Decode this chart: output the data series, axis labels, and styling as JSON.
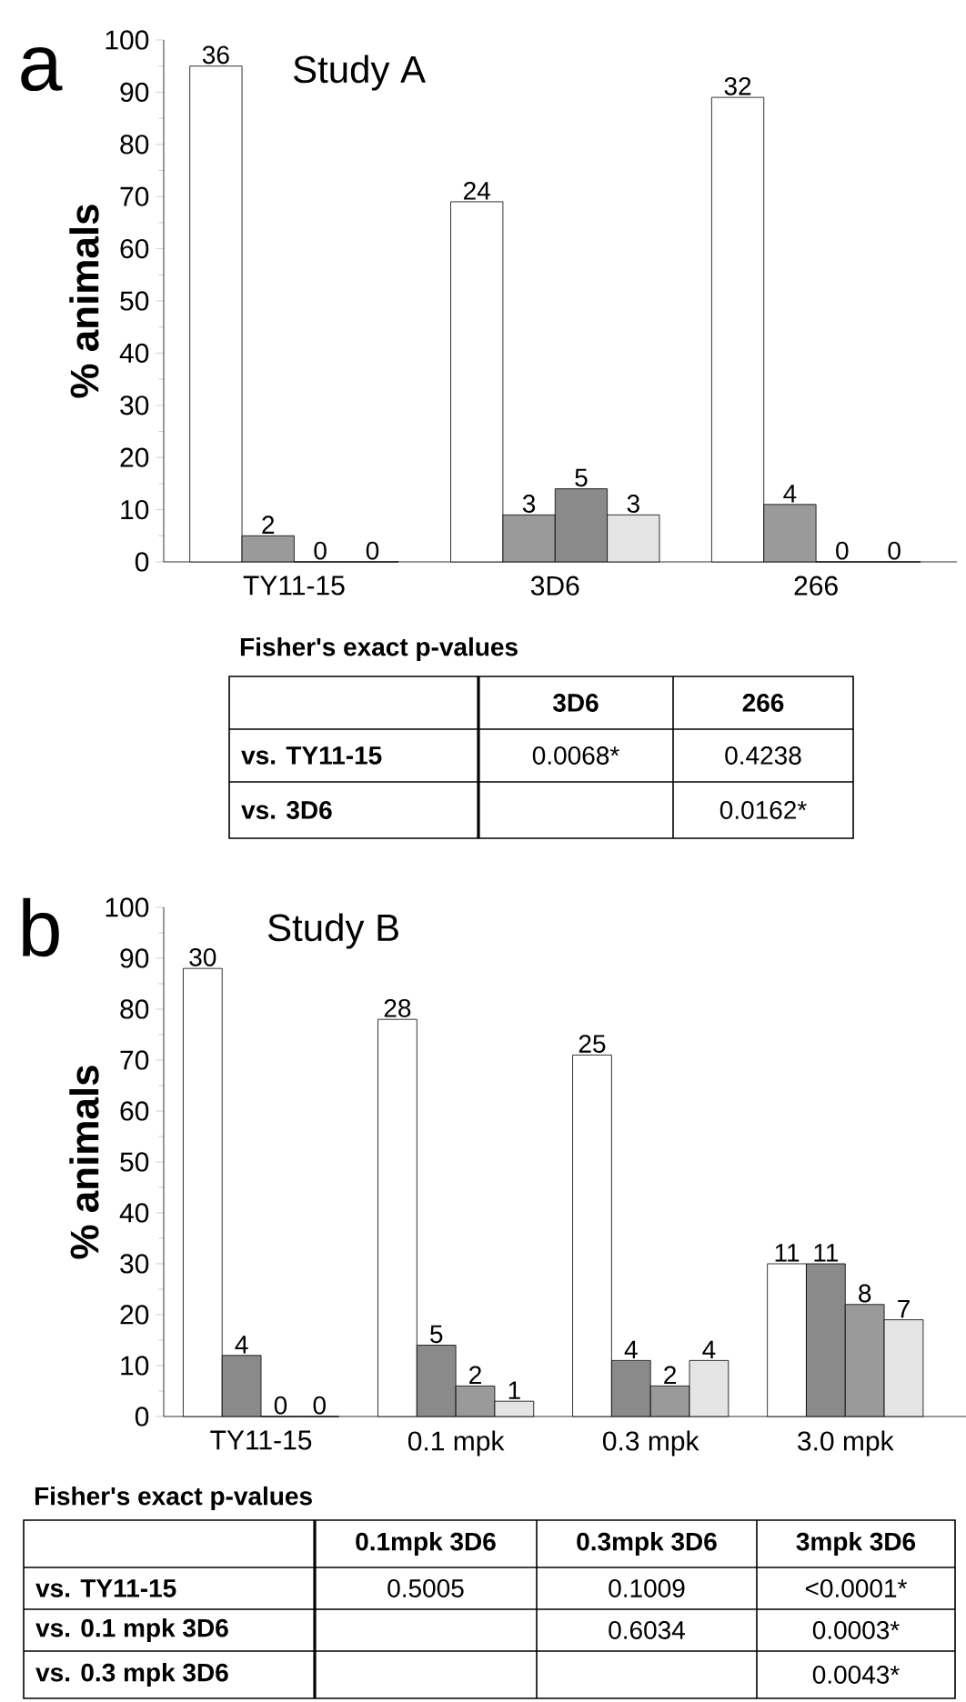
{
  "chart_data": [
    {
      "type": "bar",
      "title": "Study A",
      "ylabel": "% animals",
      "categories": [
        "TY11-15",
        "3D6",
        "266"
      ],
      "ylim": [
        0,
        100
      ],
      "yticks": [
        0,
        10,
        20,
        30,
        40,
        50,
        60,
        70,
        80,
        90,
        100
      ],
      "series": [
        {
          "color": "#ffffff",
          "values": [
            95,
            69,
            89
          ]
        },
        {
          "color": "#9a9a9a",
          "values": [
            5,
            9,
            11
          ]
        },
        {
          "color": "#8a8a8a",
          "values": [
            0,
            14,
            0
          ]
        },
        {
          "color": "#e4e4e4",
          "values": [
            0,
            9,
            0
          ]
        }
      ],
      "annotations": [
        "a",
        "Fisher's exact p-values",
        null,
        "3D6",
        "266",
        "vs. TY11-15",
        "0.0068*",
        "0.4238",
        "vs. 3D6",
        null,
        "0.0162*",
        {
          "text": "36",
          "y": 95
        },
        {
          "text": "2",
          "x": "TY11-15",
          "y": 5
        },
        {
          "text": "0",
          "x": "TY11-15",
          "y": 0
        },
        {
          "text": "0",
          "x": "TY11-15",
          "y": 0
        },
        {
          "text": "24",
          "y": 69
        },
        {
          "text": "3",
          "x": "3D6",
          "y": 9
        },
        {
          "text": "5",
          "x": "3D6",
          "y": 14
        },
        {
          "text": "3",
          "x": "3D6",
          "y": 9
        },
        {
          "text": "32",
          "y": 89
        },
        {
          "text": "4",
          "x": "266",
          "y": 11
        },
        {
          "text": "0",
          "x": "266",
          "y": 0
        },
        {
          "text": "0",
          "x": "266",
          "y": 0
        }
      ]
    },
    {
      "type": "bar",
      "title": "Study B",
      "ylabel": "% animals",
      "categories": [
        "TY11-15",
        "0.1 mpk",
        "0.3 mpk",
        "3.0 mpk"
      ],
      "ylim": [
        0,
        100
      ],
      "yticks": [
        0,
        10,
        20,
        30,
        40,
        50,
        60,
        70,
        80,
        90,
        100
      ],
      "series": [
        {
          "color": "#ffffff",
          "values": [
            88,
            78,
            71,
            30
          ]
        },
        {
          "color": "#8a8a8a",
          "values": [
            12,
            14,
            11,
            30
          ]
        },
        {
          "color": "#9a9a9a",
          "values": [
            0,
            6,
            6,
            22
          ]
        },
        {
          "color": "#e4e4e4",
          "values": [
            0,
            3,
            11,
            19
          ]
        }
      ],
      "annotations": [
        "b",
        "Fisher's exact p-values",
        null,
        "0.1mpk 3D6",
        "0.3mpk 3D6",
        "3mpk 3D6",
        "vs. TY11-15",
        "0.5005",
        "0.1009",
        "<0.0001*",
        "vs. 0.1 mpk 3D6",
        null,
        "0.6034",
        "0.0003*",
        "vs. 0.3 mpk 3D6",
        null,
        null,
        "0.0043*",
        {
          "text": "30",
          "y": 88
        },
        {
          "text": "4",
          "x": "TY11-15",
          "y": 12
        },
        {
          "text": "0",
          "x": "TY11-15",
          "y": 0
        },
        {
          "text": "0",
          "x": "TY11-15",
          "y": 0
        },
        {
          "text": "28",
          "y": 78
        },
        {
          "text": "5",
          "x": "0.1 mpk",
          "y": 14
        },
        {
          "text": "2",
          "x": "0.1 mpk",
          "y": 6
        },
        {
          "text": "1",
          "x": "0.1 mpk",
          "y": 3
        },
        {
          "text": "25",
          "y": 71
        },
        {
          "text": "4",
          "x": "0.3 mpk",
          "y": 11
        },
        {
          "text": "2",
          "x": "0.3 mpk",
          "y": 6
        },
        {
          "text": "4",
          "x": "0.3 mpk",
          "y": 11
        },
        {
          "text": "11",
          "x": "3.0 mpk",
          "y": 30
        },
        {
          "text": "11",
          "x": "3.0 mpk",
          "y": 30
        },
        {
          "text": "8",
          "x": "3.0 mpk",
          "y": 22
        },
        {
          "text": "7",
          "x": "3.0 mpk",
          "y": 19
        }
      ]
    }
  ]
}
